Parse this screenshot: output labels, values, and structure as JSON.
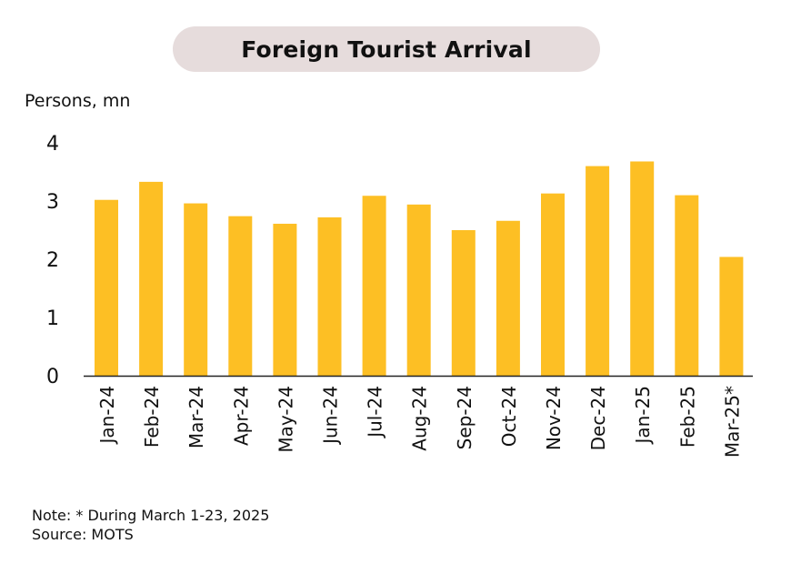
{
  "chart_data": {
    "type": "bar",
    "title": "Foreign Tourist Arrival",
    "ylabel": "Persons, mn",
    "xlabel": "",
    "categories": [
      "Jan-24",
      "Feb-24",
      "Mar-24",
      "Apr-24",
      "May-24",
      "Jun-24",
      "Jul-24",
      "Aug-24",
      "Sep-24",
      "Oct-24",
      "Nov-24",
      "Dec-24",
      "Jan-25",
      "Feb-25",
      "Mar-25*"
    ],
    "values": [
      3.02,
      3.33,
      2.96,
      2.74,
      2.61,
      2.72,
      3.09,
      2.94,
      2.5,
      2.66,
      3.13,
      3.6,
      3.68,
      3.1,
      2.04
    ],
    "ylim": [
      0,
      4
    ],
    "yticks": [
      "0",
      "1",
      "2",
      "3",
      "4"
    ],
    "grid": false,
    "bar_color": "#fdbf24"
  },
  "notes": {
    "note": "Note: * During March 1-23, 2025",
    "source": "Source: MOTS"
  },
  "colors": {
    "title_background": "#e6dcdc",
    "bar": "#fdbf24",
    "axis": "#222222"
  }
}
